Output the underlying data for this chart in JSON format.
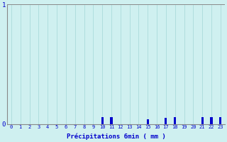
{
  "xlabel": "Précipitations 6min ( mm )",
  "categories": [
    0,
    1,
    2,
    3,
    4,
    5,
    6,
    7,
    8,
    9,
    10,
    11,
    12,
    13,
    14,
    15,
    16,
    17,
    18,
    19,
    20,
    21,
    22,
    23
  ],
  "values": [
    0,
    0,
    0,
    0,
    0,
    0,
    0,
    0,
    0,
    0,
    0.06,
    0.06,
    0,
    0,
    0,
    0.04,
    0,
    0.05,
    0.06,
    0,
    0,
    0.06,
    0.06,
    0.06
  ],
  "bar_color": "#0000cc",
  "bg_color": "#cff0f0",
  "grid_color": "#b0dede",
  "axis_color": "#888888",
  "text_color": "#0000cc",
  "ylim": [
    0,
    1
  ],
  "yticks": [
    0,
    1
  ],
  "figsize": [
    3.2,
    2.0
  ],
  "dpi": 100
}
